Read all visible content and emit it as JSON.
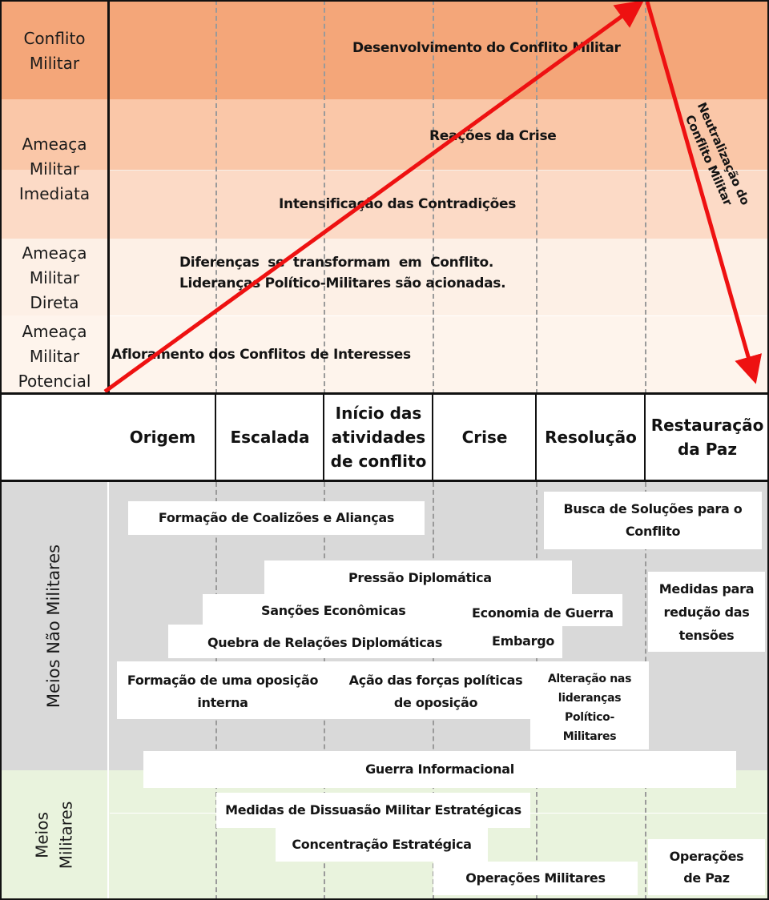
{
  "levels": {
    "conflito_militar": "Conflito\nMilitar",
    "ameaca_imediata": "Ameaça\nMilitar\nImediata",
    "ameaca_direta": "Ameaça\nMilitar\nDireta",
    "ameaca_potencial": "Ameaça\nMilitar\nPotencial"
  },
  "stages": {
    "desenvolvimento": "Desenvolvimento do Conflito Militar",
    "reacoes": "Reações da Crise",
    "intensificacao": "Intensificação das Contradições",
    "diferencas_1": "Diferenças se transformam em Conflito.",
    "diferencas_2": "Lideranças Político-Militares são acionadas.",
    "afloramento": "Afloramento dos Conflitos de Interesses",
    "neutralizacao": "Neutralização do\nConflito Militar"
  },
  "phases": [
    "Origem",
    "Escalada",
    "Início das\natividades\nde conflito",
    "Crise",
    "Resolução",
    "Restauração\nda Paz"
  ],
  "sections": {
    "nao_militares": "Meios Não Militares",
    "militares": "Meios\nMilitares"
  },
  "measures": {
    "coalizoes": "Formação de Coalizões e Alianças",
    "busca_solucoes": "Busca de Soluções para o\nConflito",
    "pressao": "Pressão Diplomática",
    "medidas_reducao": "Medidas para\nredução das\ntensões",
    "sancoes": "Sanções Econômicas",
    "economia_guerra": "Economia de Guerra",
    "quebra_relacoes": "Quebra de Relações Diplomáticas",
    "embargo": "Embargo",
    "oposicao_interna": "Formação de uma oposição\ninterna",
    "acao_forcas": "Ação das forças políticas\nde oposição",
    "alteracao": "Alteração nas\nlideranças\nPolítico-\nMilitares",
    "guerra_info": "Guerra Informacional",
    "dissuasao": "Medidas de Dissuasão Militar Estratégicas",
    "concentracao": "Concentração Estratégica",
    "operacoes_militares": "Operações Militares",
    "operacoes_paz": "Operações\nde Paz"
  },
  "colors": {
    "conflito": "#f4a679",
    "imediata_top": "#fac7a8",
    "imediata_bottom": "#fcdac6",
    "direta": "#fdf0e6",
    "potencial": "#fef4ec",
    "nao_militares_bg": "#d9d9d9",
    "militares_bg": "#e9f3dd",
    "arrow": "#ee1111"
  }
}
